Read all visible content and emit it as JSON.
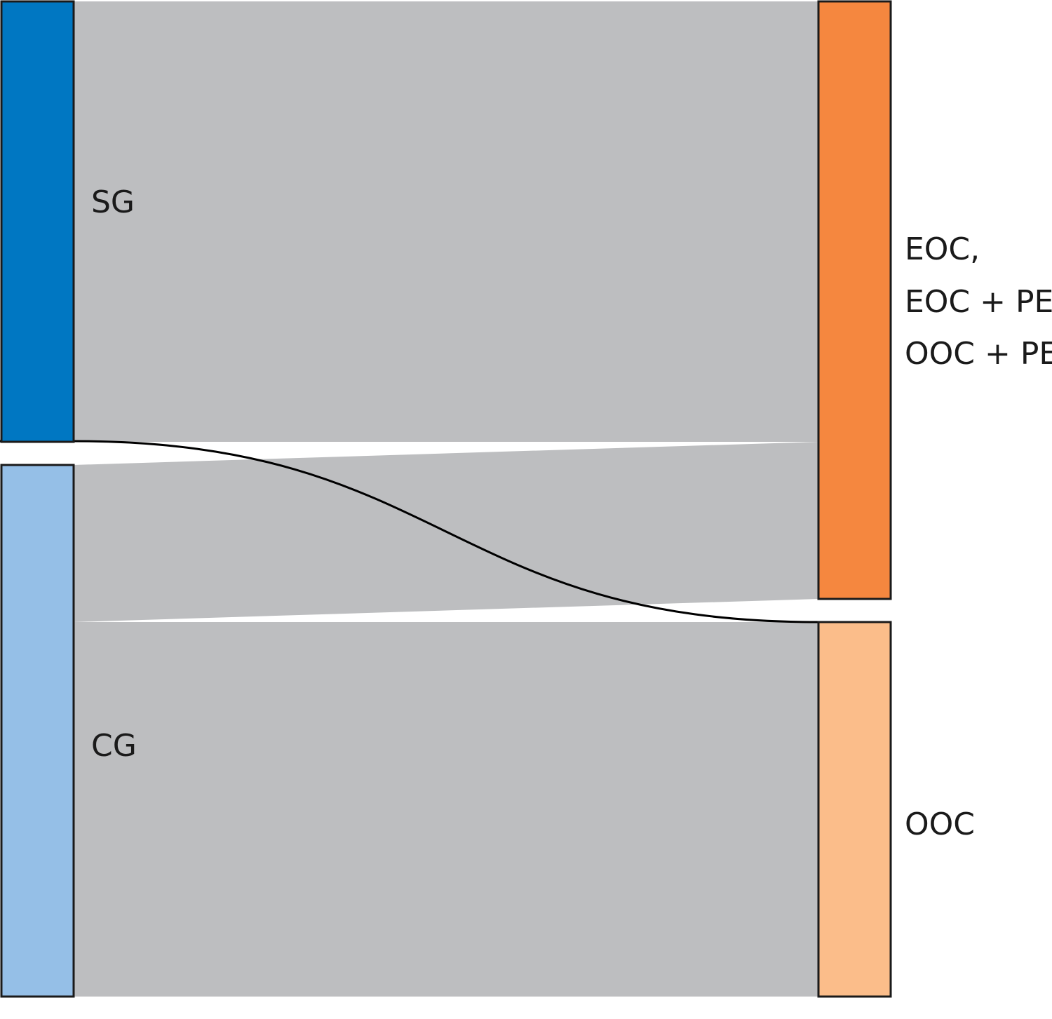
{
  "chart_data": {
    "type": "sankey",
    "sources": [
      {
        "id": "sg",
        "label": "SG",
        "color": "#0077c2"
      },
      {
        "id": "cg",
        "label": "CG",
        "color": "#95bfe7"
      }
    ],
    "targets": [
      {
        "id": "eoc_group",
        "label_lines": [
          "EOC,",
          "EOC + PE,",
          "OOC + PE"
        ],
        "color": "#f5873f"
      },
      {
        "id": "ooc",
        "label": "OOC",
        "color": "#fbbd8a"
      }
    ],
    "flows": [
      {
        "from": "sg",
        "to": "eoc_group",
        "value": 628,
        "color": "#bdbec0"
      },
      {
        "from": "sg",
        "to": "ooc",
        "value": 1,
        "color": "#000000"
      },
      {
        "from": "cg",
        "to": "eoc_group",
        "value": 224,
        "color": "#bdbec0"
      },
      {
        "from": "cg",
        "to": "ooc",
        "value": 534,
        "color": "#bdbec0"
      }
    ]
  }
}
